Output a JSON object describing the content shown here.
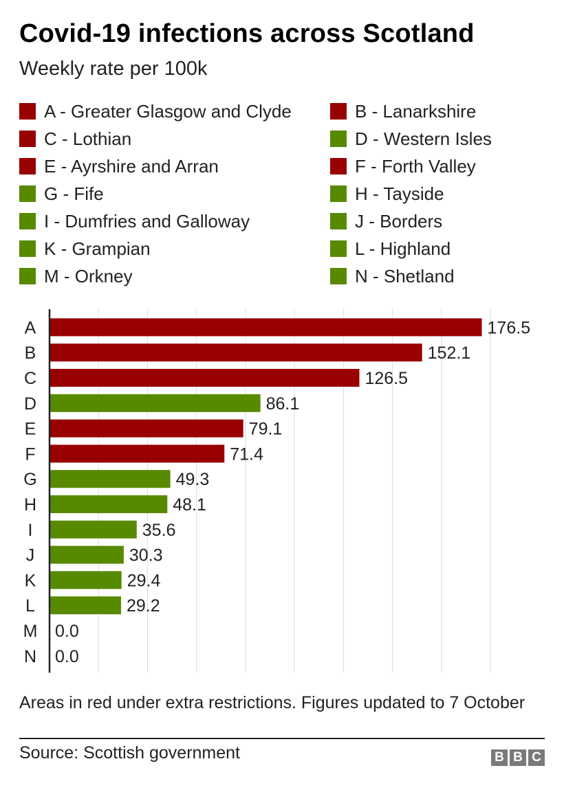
{
  "title": "Covid-19 infections across Scotland",
  "subtitle": "Weekly rate per 100k",
  "colors": {
    "restricted": "#990000",
    "other": "#588a00"
  },
  "legend": [
    {
      "label": "A - Greater Glasgow and Clyde",
      "color": "#990000"
    },
    {
      "label": "B - Lanarkshire",
      "color": "#990000"
    },
    {
      "label": "C - Lothian",
      "color": "#990000"
    },
    {
      "label": "D - Western Isles",
      "color": "#588a00"
    },
    {
      "label": "E - Ayrshire and Arran",
      "color": "#990000"
    },
    {
      "label": "F - Forth Valley",
      "color": "#990000"
    },
    {
      "label": "G - Fife",
      "color": "#588a00"
    },
    {
      "label": "H - Tayside",
      "color": "#588a00"
    },
    {
      "label": "I - Dumfries and Galloway",
      "color": "#588a00"
    },
    {
      "label": "J - Borders",
      "color": "#588a00"
    },
    {
      "label": "K - Grampian",
      "color": "#588a00"
    },
    {
      "label": "L - Highland",
      "color": "#588a00"
    },
    {
      "label": "M - Orkney",
      "color": "#588a00"
    },
    {
      "label": "N - Shetland",
      "color": "#588a00"
    }
  ],
  "chart_data": {
    "type": "bar",
    "orientation": "horizontal",
    "categories": [
      "A",
      "B",
      "C",
      "D",
      "E",
      "F",
      "G",
      "H",
      "I",
      "J",
      "K",
      "L",
      "M",
      "N"
    ],
    "values": [
      176.5,
      152.1,
      126.5,
      86.1,
      79.1,
      71.4,
      49.3,
      48.1,
      35.6,
      30.3,
      29.4,
      29.2,
      0.0,
      0.0
    ],
    "value_labels": [
      "176.5",
      "152.1",
      "126.5",
      "86.1",
      "79.1",
      "71.4",
      "49.3",
      "48.1",
      "35.6",
      "30.3",
      "29.4",
      "29.2",
      "0.0",
      "0.0"
    ],
    "bar_colors": [
      "#990000",
      "#990000",
      "#990000",
      "#588a00",
      "#990000",
      "#990000",
      "#588a00",
      "#588a00",
      "#588a00",
      "#588a00",
      "#588a00",
      "#588a00",
      "#588a00",
      "#588a00"
    ],
    "xlim": [
      0,
      180
    ],
    "gridlines": [
      20,
      40,
      60,
      80,
      100,
      120,
      140,
      160,
      180
    ],
    "grid": true,
    "legend_position": "top"
  },
  "footnote": "Areas in red under extra restrictions. Figures updated to 7 October",
  "source": "Source: Scottish government",
  "logo": [
    "B",
    "B",
    "C"
  ]
}
